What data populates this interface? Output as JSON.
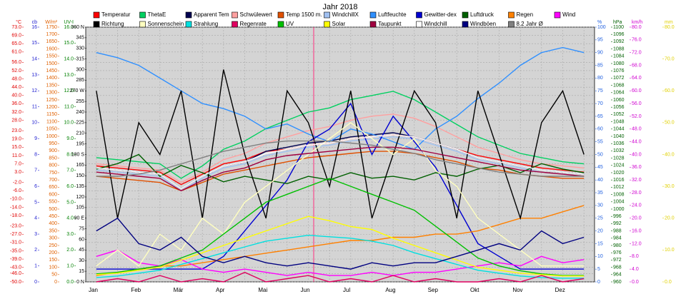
{
  "chart_data": {
    "type": "line",
    "title": "Jahr 2018",
    "categories": [
      "Jan",
      null,
      "Feb",
      null,
      "Mär",
      null,
      "Apr",
      null,
      "Mai",
      null,
      "Jun",
      null,
      "Jul",
      null,
      "Aug",
      null,
      "Sep",
      null,
      "Okt",
      null,
      "Nov",
      null,
      "Dez",
      null
    ],
    "grid": true,
    "legend": "top",
    "axes": [
      {
        "label": "°C",
        "side": "left",
        "color": "#e00000",
        "ylim": [
          -50,
          73
        ],
        "ticks": [
          {
            "value": 73,
            "label": "73.0"
          },
          {
            "value": 69,
            "label": "69.0"
          },
          {
            "value": 65,
            "label": "65.0"
          },
          {
            "value": 61,
            "label": "61.0"
          },
          {
            "value": 56,
            "label": "56.0"
          },
          {
            "value": 52,
            "label": "52.0"
          },
          {
            "value": 48,
            "label": "48.0"
          },
          {
            "value": 44,
            "label": "44.0"
          },
          {
            "value": 40,
            "label": "40.0"
          },
          {
            "value": 36,
            "label": "36.0"
          },
          {
            "value": 32,
            "label": "32.0"
          },
          {
            "value": 28,
            "label": "28.0"
          },
          {
            "value": 23,
            "label": "23.0"
          },
          {
            "value": 19,
            "label": "19.0"
          },
          {
            "value": 15,
            "label": "15.0"
          },
          {
            "value": 11,
            "label": "11.0"
          },
          {
            "value": 7,
            "label": "7.0"
          },
          {
            "value": 3,
            "label": "3.0"
          },
          {
            "value": -2,
            "label": "-2.0"
          },
          {
            "value": -6,
            "label": "-6.0"
          },
          {
            "value": -10,
            "label": "-10.0"
          },
          {
            "value": -14,
            "label": "-14.0"
          },
          {
            "value": -18,
            "label": "-18.0"
          },
          {
            "value": -23,
            "label": "-23.0"
          },
          {
            "value": -27,
            "label": "-27.0"
          },
          {
            "value": -31,
            "label": "-31.0"
          },
          {
            "value": -35,
            "label": "-35.0"
          },
          {
            "value": -39,
            "label": "-39.0"
          },
          {
            "value": -43,
            "label": "-43.0"
          },
          {
            "value": -46,
            "label": "-46.0"
          },
          {
            "value": -50,
            "label": "-50.0"
          }
        ]
      },
      {
        "label": "cb",
        "side": "left",
        "color": "#2020d0",
        "ylim": [
          0,
          16
        ],
        "ticks": [
          0,
          1,
          2,
          3,
          4,
          5,
          6,
          7,
          8,
          9,
          10,
          11,
          12,
          13,
          14,
          15,
          16
        ]
      },
      {
        "label": "W/m²",
        "side": "left",
        "color": "#e06000",
        "ylim": [
          0,
          1750
        ],
        "ticks": [
          0,
          50,
          100,
          150,
          200,
          250,
          300,
          350,
          400,
          450,
          500,
          550,
          600,
          650,
          700,
          750,
          800,
          850,
          900,
          950,
          1000,
          1050,
          1100,
          1150,
          1200,
          1250,
          1300,
          1350,
          1400,
          1450,
          1500,
          1550,
          1600,
          1650,
          1700,
          1750
        ]
      },
      {
        "label": "UV-I",
        "side": "left",
        "color": "#008000",
        "ylim": [
          0,
          16
        ],
        "ticks": [
          {
            "value": 0,
            "label": "0.0"
          },
          {
            "value": 1,
            "label": "1.0"
          },
          {
            "value": 2,
            "label": "2.0"
          },
          {
            "value": 3,
            "label": "3.0"
          },
          {
            "value": 4,
            "label": "4.0"
          },
          {
            "value": 5,
            "label": "5.0"
          },
          {
            "value": 6,
            "label": "6.0"
          },
          {
            "value": 7,
            "label": "7.0"
          },
          {
            "value": 8,
            "label": "8.0"
          },
          {
            "value": 9,
            "label": "9.0"
          },
          {
            "value": 10,
            "label": "10.0"
          },
          {
            "value": 11,
            "label": "11.0"
          },
          {
            "value": 12,
            "label": "12.0"
          },
          {
            "value": 13,
            "label": "13.0"
          },
          {
            "value": 14,
            "label": "14.0"
          },
          {
            "value": 15,
            "label": "15.0"
          },
          {
            "value": 16,
            "label": "16.0"
          }
        ]
      },
      {
        "side": "left",
        "color": "#000000",
        "ylim": [
          0,
          360
        ],
        "ticks": [
          {
            "value": 0,
            "label": "0 N"
          },
          15,
          30,
          45,
          60,
          75,
          {
            "value": 90,
            "label": "90 E"
          },
          105,
          120,
          135,
          150,
          165,
          {
            "value": 180,
            "label": "180 S"
          },
          195,
          210,
          225,
          240,
          255,
          {
            "value": 270,
            "label": "270 W"
          },
          285,
          300,
          315,
          330,
          345,
          {
            "value": 360,
            "label": "360 N"
          }
        ]
      },
      {
        "label": "%",
        "side": "right",
        "color": "#2060e0",
        "ylim": [
          0,
          100
        ],
        "ticks": [
          0,
          5,
          10,
          15,
          20,
          25,
          30,
          35,
          40,
          45,
          50,
          55,
          60,
          65,
          70,
          75,
          80,
          85,
          90,
          95,
          100
        ]
      },
      {
        "label": "hPa",
        "side": "right",
        "color": "#006000",
        "ylim": [
          960,
          1100
        ],
        "ticks": [
          960,
          964,
          968,
          972,
          976,
          980,
          984,
          988,
          992,
          996,
          1000,
          1004,
          1008,
          1012,
          1016,
          1020,
          1024,
          1028,
          1032,
          1036,
          1040,
          1044,
          1048,
          1052,
          1056,
          1060,
          1064,
          1068,
          1072,
          1076,
          1080,
          1084,
          1088,
          1092,
          1096,
          1100
        ]
      },
      {
        "label": "km/h",
        "side": "right",
        "color": "#d000d0",
        "ylim": [
          0,
          80
        ],
        "ticks": [
          {
            "value": 0,
            "label": "0.0"
          },
          {
            "value": 4,
            "label": "4.0"
          },
          {
            "value": 8,
            "label": "8.0"
          },
          {
            "value": 12,
            "label": "12.0"
          },
          {
            "value": 16,
            "label": "16.0"
          },
          {
            "value": 20,
            "label": "20.0"
          },
          {
            "value": 24,
            "label": "24.0"
          },
          {
            "value": 28,
            "label": "28.0"
          },
          {
            "value": 32,
            "label": "32.0"
          },
          {
            "value": 36,
            "label": "36.0"
          },
          {
            "value": 40,
            "label": "40.0"
          },
          {
            "value": 44,
            "label": "44.0"
          },
          {
            "value": 48,
            "label": "48.0"
          },
          {
            "value": 52,
            "label": "52.0"
          },
          {
            "value": 56,
            "label": "56.0"
          },
          {
            "value": 60,
            "label": "60.0"
          },
          {
            "value": 64,
            "label": "64.0"
          },
          {
            "value": 68,
            "label": "68.0"
          },
          {
            "value": 72,
            "label": "72.0"
          },
          {
            "value": 76,
            "label": "76.0"
          },
          {
            "value": 80,
            "label": "80.0"
          }
        ]
      },
      {
        "label": "mm",
        "side": "right",
        "color": "#e0d000",
        "ylim": [
          0,
          80
        ],
        "ticks": [
          {
            "value": 0,
            "label": "0.0"
          },
          {
            "value": 10,
            "label": "10.0"
          },
          {
            "value": 20,
            "label": "20.0"
          },
          {
            "value": 30,
            "label": "30.0"
          },
          {
            "value": 40,
            "label": "40.0"
          },
          {
            "value": 50,
            "label": "50.0"
          },
          {
            "value": 60,
            "label": "60.0"
          },
          {
            "value": 70,
            "label": "70.0"
          },
          {
            "value": 80,
            "label": "80.0"
          }
        ]
      }
    ],
    "series": [
      {
        "name": "Temperatur",
        "color": "#ff0000",
        "axis": 0,
        "values": [
          6,
          5,
          4,
          3,
          -3,
          2,
          7,
          9,
          13,
          14,
          16,
          17,
          19,
          20,
          21,
          20,
          17,
          14,
          11,
          9,
          7,
          5,
          4,
          3
        ]
      },
      {
        "name": "ThetaE",
        "color": "#00d060",
        "axis": 0,
        "values": [
          10,
          9,
          8,
          7,
          0,
          6,
          14,
          18,
          24,
          28,
          32,
          34,
          38,
          40,
          42,
          38,
          32,
          26,
          20,
          16,
          12,
          10,
          8,
          7
        ]
      },
      {
        "name": "Apparent Tem",
        "color": "#000050",
        "axis": 0,
        "values": [
          5,
          4,
          3,
          2,
          -5,
          1,
          6,
          8,
          13,
          15,
          17,
          18,
          20,
          21,
          22,
          20,
          17,
          14,
          10,
          8,
          6,
          4,
          3,
          2
        ]
      },
      {
        "name": "Schwülewert",
        "color": "#ffa0a0",
        "axis": 0,
        "values": [
          7,
          6,
          5,
          4,
          -2,
          3,
          9,
          12,
          17,
          20,
          23,
          25,
          28,
          30,
          31,
          29,
          25,
          20,
          15,
          12,
          9,
          7,
          6,
          5
        ]
      },
      {
        "name": "Temp 1500 m.",
        "color": "#e05000",
        "axis": 0,
        "values": [
          1,
          0,
          -1,
          -2,
          -6,
          -2,
          2,
          4,
          6,
          8,
          10,
          11,
          12,
          13,
          13,
          12,
          10,
          8,
          5,
          4,
          2,
          1,
          0,
          0
        ]
      },
      {
        "name": "WindchillX",
        "color": "#a0c0f0",
        "axis": 0,
        "values": [
          4,
          3,
          2,
          1,
          -6,
          0,
          5,
          7,
          11,
          13,
          15,
          16,
          18,
          19,
          20,
          19,
          16,
          13,
          9,
          7,
          5,
          3,
          2,
          1
        ]
      },
      {
        "name": "Luftfeuchte",
        "color": "#3090ff",
        "axis": 5,
        "values": [
          90,
          88,
          85,
          80,
          75,
          70,
          68,
          65,
          60,
          62,
          58,
          55,
          60,
          58,
          55,
          52,
          60,
          65,
          72,
          78,
          85,
          90,
          92,
          90
        ]
      },
      {
        "name": "Gewitter-dex",
        "color": "#0000d0",
        "axis": 5,
        "values": [
          5,
          5,
          5,
          5,
          5,
          5,
          10,
          20,
          30,
          40,
          55,
          60,
          70,
          50,
          65,
          55,
          45,
          30,
          15,
          10,
          5,
          5,
          5,
          5
        ]
      },
      {
        "name": "Luftdruck",
        "color": "#006000",
        "axis": 6,
        "values": [
          1022,
          1025,
          1030,
          1018,
          1024,
          1020,
          1015,
          1018,
          1016,
          1014,
          1018,
          1016,
          1020,
          1017,
          1018,
          1016,
          1020,
          1018,
          1022,
          1024,
          1020,
          1025,
          1022,
          1020
        ]
      },
      {
        "name": "Regen",
        "color": "#ff8000",
        "axis": 8,
        "values": [
          2,
          3,
          4,
          5,
          5,
          6,
          7,
          8,
          9,
          10,
          11,
          12,
          13,
          13,
          14,
          14,
          15,
          15,
          16,
          18,
          20,
          20,
          22,
          24
        ]
      },
      {
        "name": "Wind",
        "color": "#ff00ff",
        "axis": 7,
        "values": [
          8,
          10,
          6,
          5,
          7,
          4,
          3,
          4,
          3,
          2,
          3,
          2,
          2,
          3,
          2,
          3,
          3,
          4,
          5,
          6,
          5,
          8,
          6,
          7
        ]
      },
      {
        "name": "Richtung",
        "color": "#000000",
        "axis": 4,
        "values": [
          270,
          90,
          225,
          180,
          270,
          90,
          300,
          180,
          90,
          270,
          225,
          135,
          270,
          90,
          180,
          270,
          225,
          90,
          270,
          180,
          90,
          225,
          270,
          180
        ]
      },
      {
        "name": "Sonnenschein",
        "color": "#ffffc0",
        "axis": 1,
        "values": [
          1,
          2,
          1,
          3,
          2,
          4,
          3,
          5,
          6,
          7,
          8,
          9,
          10,
          9,
          8,
          9,
          7,
          6,
          4,
          3,
          2,
          1,
          1,
          1
        ]
      },
      {
        "name": "Strahlung",
        "color": "#00e0e0",
        "axis": 2,
        "values": [
          30,
          40,
          60,
          80,
          120,
          160,
          200,
          240,
          280,
          300,
          320,
          310,
          300,
          280,
          250,
          200,
          160,
          120,
          80,
          60,
          40,
          30,
          25,
          25
        ]
      },
      {
        "name": "Regenrate",
        "color": "#e00060",
        "axis": 8,
        "values": [
          0,
          1,
          0,
          2,
          0,
          1,
          0,
          3,
          0,
          1,
          2,
          0,
          1,
          0,
          2,
          0,
          1,
          0,
          0,
          1,
          0,
          2,
          0,
          1
        ]
      },
      {
        "name": "UV",
        "color": "#00c000",
        "axis": 3,
        "values": [
          0.5,
          0.6,
          0.8,
          1,
          1.5,
          2,
          3,
          4,
          5,
          5.5,
          6,
          6.5,
          6,
          5.5,
          5,
          4.5,
          3.5,
          2.5,
          1.5,
          1,
          0.7,
          0.5,
          0.4,
          0.4
        ]
      },
      {
        "name": "Solar",
        "color": "#ffff00",
        "axis": 2,
        "values": [
          50,
          60,
          80,
          100,
          150,
          200,
          250,
          300,
          350,
          400,
          450,
          420,
          380,
          360,
          300,
          250,
          200,
          150,
          100,
          80,
          60,
          50,
          40,
          40
        ]
      },
      {
        "name": "Taupunkt",
        "color": "#a00040",
        "axis": 0,
        "values": [
          3,
          2,
          1,
          0,
          -6,
          -1,
          3,
          5,
          9,
          11,
          12,
          13,
          14,
          15,
          15,
          14,
          12,
          10,
          8,
          6,
          4,
          3,
          2,
          1
        ]
      },
      {
        "name": "Windchill",
        "color": "#ffffff",
        "axis": 0,
        "values": [
          5,
          4,
          3,
          2,
          -5,
          1,
          6,
          8,
          12,
          14,
          16,
          17,
          19,
          20,
          21,
          20,
          17,
          14,
          10,
          8,
          6,
          4,
          3,
          2
        ]
      },
      {
        "name": "Windböen",
        "color": "#000080",
        "axis": 7,
        "values": [
          16,
          20,
          12,
          10,
          14,
          8,
          6,
          8,
          6,
          5,
          6,
          5,
          4,
          6,
          5,
          6,
          6,
          8,
          10,
          12,
          10,
          16,
          12,
          14
        ]
      },
      {
        "name": "8.2 Jahr Ø",
        "color": "#808080",
        "axis": 0,
        "values": [
          1,
          1,
          2,
          4,
          7,
          10,
          13,
          15,
          17,
          18,
          18,
          18,
          17,
          16,
          14,
          12,
          9,
          7,
          5,
          3,
          2,
          1,
          1,
          1
        ]
      }
    ]
  }
}
